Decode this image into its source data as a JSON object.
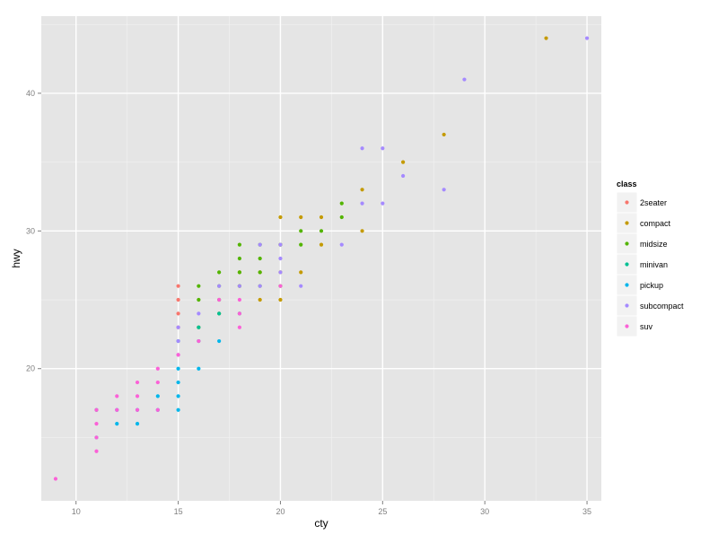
{
  "chart_data": {
    "type": "scatter",
    "title": "",
    "xlabel": "cty",
    "ylabel": "hwy",
    "xlim": [
      8.3,
      35.7
    ],
    "ylim": [
      10.4,
      45.6
    ],
    "x_ticks": [
      10,
      15,
      20,
      25,
      30,
      35
    ],
    "y_ticks": [
      20,
      30,
      40
    ],
    "x_tick_labels": [
      "10",
      "15",
      "20",
      "25",
      "30",
      "35"
    ],
    "y_tick_labels": [
      "20",
      "30",
      "40"
    ],
    "grid": true,
    "legend": {
      "title": "class",
      "placement": "right",
      "entries": [
        "2seater",
        "compact",
        "midsize",
        "minivan",
        "pickup",
        "subcompact",
        "suv"
      ]
    },
    "colors": {
      "2seater": "#F8766D",
      "compact": "#C49A00",
      "midsize": "#53B400",
      "minivan": "#00C094",
      "pickup": "#00B6EB",
      "subcompact": "#A58AFF",
      "suv": "#FB61D7"
    },
    "series": [
      {
        "name": "2seater",
        "points": [
          [
            15,
            24
          ],
          [
            15,
            25
          ],
          [
            15,
            26
          ],
          [
            15,
            23
          ]
        ]
      },
      {
        "name": "compact",
        "points": [
          [
            33,
            44
          ],
          [
            28,
            37
          ],
          [
            26,
            35
          ],
          [
            24,
            33
          ],
          [
            24,
            30
          ],
          [
            22,
            31
          ],
          [
            22,
            29
          ],
          [
            21,
            31
          ],
          [
            21,
            27
          ],
          [
            20,
            31
          ],
          [
            20,
            29
          ],
          [
            20,
            27
          ],
          [
            20,
            25
          ],
          [
            19,
            27
          ],
          [
            19,
            25
          ],
          [
            18,
            27
          ],
          [
            18,
            26
          ],
          [
            17,
            24
          ],
          [
            16,
            23
          ]
        ]
      },
      {
        "name": "midsize",
        "points": [
          [
            23,
            32
          ],
          [
            23,
            31
          ],
          [
            22,
            30
          ],
          [
            21,
            30
          ],
          [
            21,
            29
          ],
          [
            20,
            29
          ],
          [
            20,
            26
          ],
          [
            19,
            29
          ],
          [
            19,
            28
          ],
          [
            19,
            27
          ],
          [
            19,
            26
          ],
          [
            18,
            29
          ],
          [
            18,
            28
          ],
          [
            18,
            27
          ],
          [
            18,
            26
          ],
          [
            17,
            27
          ],
          [
            17,
            26
          ],
          [
            17,
            25
          ],
          [
            16,
            26
          ],
          [
            16,
            25
          ]
        ]
      },
      {
        "name": "minivan",
        "points": [
          [
            18,
            24
          ],
          [
            17,
            24
          ],
          [
            16,
            22
          ],
          [
            16,
            23
          ],
          [
            15,
            22
          ],
          [
            11,
            17
          ]
        ]
      },
      {
        "name": "pickup",
        "points": [
          [
            17,
            22
          ],
          [
            16,
            20
          ],
          [
            15,
            20
          ],
          [
            15,
            19
          ],
          [
            15,
            18
          ],
          [
            15,
            17
          ],
          [
            14,
            18
          ],
          [
            14,
            17
          ],
          [
            13,
            17
          ],
          [
            13,
            16
          ],
          [
            12,
            16
          ],
          [
            12,
            17
          ],
          [
            11,
            15
          ]
        ]
      },
      {
        "name": "subcompact",
        "points": [
          [
            35,
            44
          ],
          [
            29,
            41
          ],
          [
            28,
            33
          ],
          [
            26,
            34
          ],
          [
            25,
            36
          ],
          [
            25,
            32
          ],
          [
            24,
            36
          ],
          [
            24,
            32
          ],
          [
            23,
            29
          ],
          [
            21,
            26
          ],
          [
            20,
            29
          ],
          [
            20,
            28
          ],
          [
            20,
            27
          ],
          [
            19,
            29
          ],
          [
            19,
            26
          ],
          [
            18,
            26
          ],
          [
            17,
            26
          ],
          [
            16,
            24
          ],
          [
            15,
            23
          ],
          [
            15,
            22
          ],
          [
            15,
            21
          ]
        ]
      },
      {
        "name": "suv",
        "points": [
          [
            20,
            26
          ],
          [
            18,
            25
          ],
          [
            18,
            24
          ],
          [
            18,
            23
          ],
          [
            17,
            25
          ],
          [
            16,
            22
          ],
          [
            15,
            21
          ],
          [
            14,
            20
          ],
          [
            14,
            19
          ],
          [
            14,
            17
          ],
          [
            13,
            19
          ],
          [
            13,
            18
          ],
          [
            13,
            17
          ],
          [
            12,
            18
          ],
          [
            12,
            17
          ],
          [
            11,
            17
          ],
          [
            11,
            16
          ],
          [
            11,
            15
          ],
          [
            11,
            14
          ],
          [
            9,
            12
          ]
        ]
      }
    ]
  }
}
